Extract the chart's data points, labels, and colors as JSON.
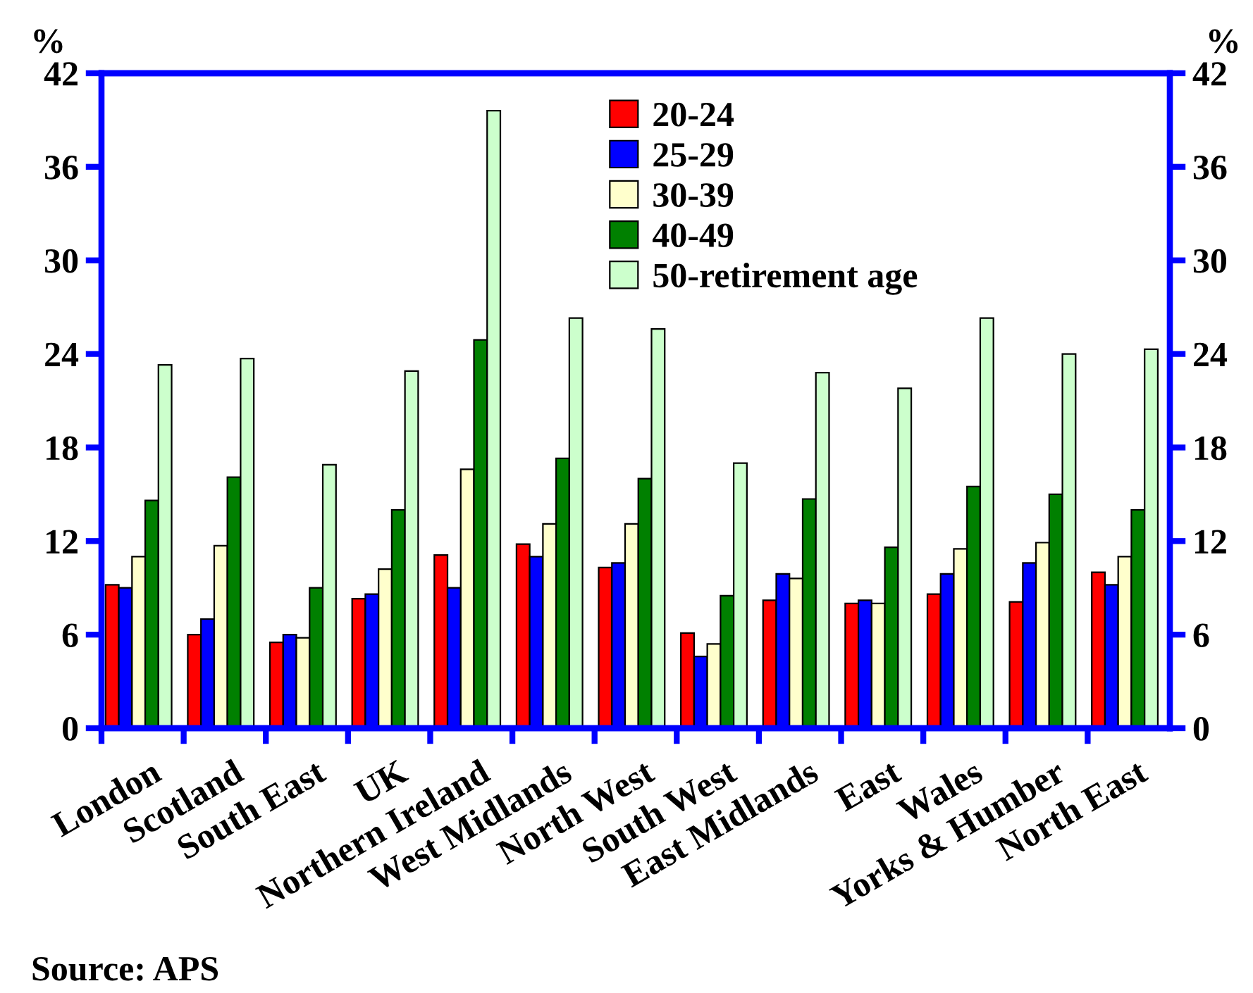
{
  "chart_data": {
    "type": "bar",
    "ylabel": "%",
    "y2label": "%",
    "categories": [
      "London",
      "Scotland",
      "South East",
      "UK",
      "Northern Ireland",
      "West Midlands",
      "North West",
      "South West",
      "East Midlands",
      "East",
      "Wales",
      "Yorks & Humber",
      "North East"
    ],
    "series": [
      {
        "name": "20-24",
        "color": "#ff0000",
        "values": [
          9.2,
          6.0,
          5.5,
          8.3,
          11.1,
          11.8,
          10.3,
          6.1,
          8.2,
          8.0,
          8.6,
          8.1,
          10.0
        ]
      },
      {
        "name": "25-29",
        "color": "#0000ff",
        "values": [
          9.0,
          7.0,
          6.0,
          8.6,
          9.0,
          11.0,
          10.6,
          4.6,
          9.9,
          8.2,
          9.9,
          10.6,
          9.2
        ]
      },
      {
        "name": "30-39",
        "color": "#ffffcc",
        "values": [
          11.0,
          11.7,
          5.8,
          10.2,
          16.6,
          13.1,
          13.1,
          5.4,
          9.6,
          8.0,
          11.5,
          11.9,
          11.0
        ]
      },
      {
        "name": "40-49",
        "color": "#008000",
        "values": [
          14.6,
          16.1,
          9.0,
          14.0,
          24.9,
          17.3,
          16.0,
          8.5,
          14.7,
          11.6,
          15.5,
          15.0,
          14.0
        ]
      },
      {
        "name": "50-retirement age",
        "color": "#ccffcc",
        "values": [
          23.3,
          23.7,
          16.9,
          22.9,
          39.6,
          26.3,
          25.6,
          17.0,
          22.8,
          21.8,
          26.3,
          24.0,
          24.3
        ]
      }
    ],
    "ylim": [
      0,
      42
    ],
    "yticks": [
      0,
      6,
      12,
      18,
      24,
      30,
      36,
      42
    ],
    "y2lim": [
      0,
      42
    ],
    "y2ticks": [
      0,
      6,
      12,
      18,
      24,
      30,
      36,
      42
    ],
    "grid": false,
    "legend": "top right",
    "annotations": [
      "Source: APS"
    ]
  }
}
